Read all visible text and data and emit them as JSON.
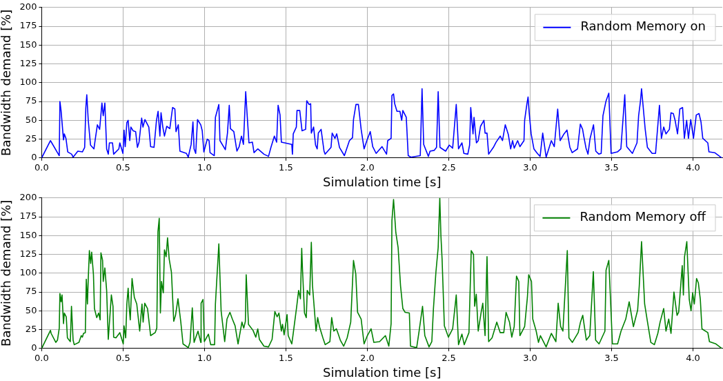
{
  "chart_data": [
    {
      "type": "line",
      "xlabel": "Simulation time [s]",
      "ylabel": "Bandwidth demand [%]",
      "xlim": [
        0,
        4.18
      ],
      "ylim": [
        0,
        200
      ],
      "xticks": [
        {
          "value": 0,
          "label": "0.0"
        },
        {
          "value": 0.5,
          "label": "0.5"
        },
        {
          "value": 1,
          "label": "1.0"
        },
        {
          "value": 1.5,
          "label": "1.5"
        },
        {
          "value": 2,
          "label": "2.0"
        },
        {
          "value": 2.5,
          "label": "2.5"
        },
        {
          "value": 3,
          "label": "3.0"
        },
        {
          "value": 3.5,
          "label": "3.5"
        },
        {
          "value": 4,
          "label": "4.0"
        }
      ],
      "yticks": [
        0,
        25,
        50,
        75,
        100,
        125,
        150,
        175,
        200
      ],
      "grid": true,
      "legend": "top right",
      "marker": "none",
      "line_style": "solid",
      "series": [
        {
          "name": "Random Memory on",
          "color": "#0000ff",
          "x": [
            0,
            0.054,
            0.108,
            0.112,
            0.119,
            0.134,
            0.139,
            0.149,
            0.16,
            0.184,
            0.193,
            0.222,
            0.25,
            0.264,
            0.271,
            0.277,
            0.286,
            0.3,
            0.321,
            0.328,
            0.342,
            0.356,
            0.37,
            0.378,
            0.388,
            0.399,
            0.409,
            0.416,
            0.435,
            0.442,
            0.474,
            0.48,
            0.499,
            0.506,
            0.513,
            0.523,
            0.531,
            0.541,
            0.548,
            0.562,
            0.577,
            0.588,
            0.598,
            0.614,
            0.622,
            0.634,
            0.658,
            0.669,
            0.69,
            0.705,
            0.715,
            0.726,
            0.733,
            0.744,
            0.754,
            0.768,
            0.787,
            0.804,
            0.818,
            0.825,
            0.839,
            0.849,
            0.889,
            0.9,
            0.918,
            0.929,
            0.936,
            0.946,
            0.957,
            0.977,
            0.986,
            0.996,
            1.017,
            1.028,
            1.034,
            1.06,
            1.067,
            1.088,
            1.095,
            1.128,
            1.141,
            1.152,
            1.159,
            1.18,
            1.199,
            1.213,
            1.227,
            1.239,
            1.253,
            1.261,
            1.273,
            1.294,
            1.304,
            1.327,
            1.365,
            1.393,
            1.408,
            1.429,
            1.443,
            1.452,
            1.464,
            1.472,
            1.493,
            1.536,
            1.54,
            1.545,
            1.564,
            1.568,
            1.585,
            1.599,
            1.621,
            1.628,
            1.642,
            1.652,
            1.656,
            1.67,
            1.682,
            1.692,
            1.699,
            1.716,
            1.734,
            1.741,
            1.777,
            1.784,
            1.801,
            1.812,
            1.829,
            1.859,
            1.89,
            1.909,
            1.915,
            1.93,
            1.945,
            1.962,
            1.98,
            1.997,
            2.018,
            2.033,
            2.054,
            2.09,
            2.118,
            2.125,
            2.146,
            2.151,
            2.161,
            2.168,
            2.182,
            2.2,
            2.211,
            2.218,
            2.239,
            2.251,
            2.268,
            2.325,
            2.336,
            2.346,
            2.375,
            2.385,
            2.41,
            2.425,
            2.435,
            2.446,
            2.481,
            2.503,
            2.524,
            2.546,
            2.56,
            2.581,
            2.593,
            2.617,
            2.628,
            2.635,
            2.649,
            2.655,
            2.67,
            2.681,
            2.695,
            2.716,
            2.723,
            2.735,
            2.745,
            2.774,
            2.791,
            2.816,
            2.83,
            2.847,
            2.866,
            2.88,
            2.892,
            2.902,
            2.923,
            2.937,
            2.962,
            2.966,
            2.98,
            2.987,
            2.994,
            3.006,
            3.023,
            3.044,
            3.061,
            3.077,
            3.098,
            3.13,
            3.148,
            3.169,
            3.184,
            3.208,
            3.226,
            3.244,
            3.258,
            3.291,
            3.308,
            3.322,
            3.329,
            3.343,
            3.355,
            3.368,
            3.389,
            3.403,
            3.422,
            3.436,
            3.447,
            3.465,
            3.483,
            3.497,
            3.536,
            3.557,
            3.581,
            3.593,
            3.628,
            3.656,
            3.666,
            3.677,
            3.684,
            3.706,
            3.72,
            3.749,
            3.77,
            3.794,
            3.806,
            3.82,
            3.834,
            3.855,
            3.865,
            3.879,
            3.89,
            3.905,
            3.919,
            3.936,
            3.947,
            3.961,
            3.972,
            3.986,
            4.003,
            4.02,
            4.037,
            4.049,
            4.06,
            4.091,
            4.098,
            4.133,
            4.177
          ],
          "values": [
            0,
            23,
            3,
            75,
            63,
            24,
            32,
            26,
            8,
            5,
            1,
            9,
            8,
            14,
            66,
            84,
            50,
            17,
            12,
            23,
            44,
            38,
            73,
            56,
            73,
            12,
            5,
            20,
            20,
            5,
            12,
            20,
            6,
            37,
            15,
            47,
            50,
            23,
            41,
            36,
            35,
            14,
            21,
            53,
            41,
            51,
            41,
            15,
            14,
            50,
            62,
            29,
            60,
            41,
            29,
            42,
            39,
            67,
            65,
            35,
            44,
            9,
            6,
            1,
            18,
            48,
            12,
            6,
            51,
            44,
            36,
            8,
            25,
            23,
            7,
            3,
            54,
            71,
            23,
            11,
            33,
            70,
            39,
            35,
            9,
            15,
            29,
            18,
            88,
            60,
            20,
            21,
            7,
            12,
            5,
            2,
            14,
            29,
            21,
            70,
            57,
            21,
            20,
            18,
            5,
            32,
            41,
            63,
            63,
            36,
            38,
            76,
            71,
            72,
            33,
            41,
            17,
            12,
            33,
            38,
            9,
            5,
            14,
            33,
            26,
            32,
            14,
            3,
            23,
            27,
            51,
            71,
            71,
            38,
            12,
            23,
            35,
            15,
            6,
            15,
            5,
            23,
            26,
            83,
            85,
            72,
            62,
            62,
            50,
            63,
            54,
            3,
            1,
            3,
            92,
            18,
            2,
            9,
            10,
            14,
            88,
            14,
            9,
            17,
            13,
            71,
            12,
            20,
            6,
            5,
            17,
            67,
            32,
            54,
            20,
            23,
            42,
            50,
            33,
            33,
            5,
            14,
            21,
            29,
            23,
            44,
            31,
            12,
            23,
            13,
            23,
            15,
            23,
            50,
            72,
            81,
            60,
            32,
            12,
            6,
            2,
            33,
            1,
            23,
            15,
            65,
            23,
            32,
            37,
            14,
            7,
            12,
            45,
            38,
            29,
            13,
            5,
            26,
            44,
            9,
            5,
            6,
            56,
            75,
            86,
            6,
            8,
            12,
            84,
            15,
            6,
            20,
            56,
            75,
            92,
            39,
            14,
            6,
            6,
            70,
            26,
            41,
            32,
            38,
            60,
            59,
            50,
            32,
            65,
            67,
            26,
            50,
            26,
            51,
            26,
            57,
            59,
            48,
            26,
            20,
            8,
            7,
            0
          ]
        }
      ]
    },
    {
      "type": "line",
      "xlabel": "Simulation time [s]",
      "ylabel": "Bandwidth demand [%]",
      "xlim": [
        0,
        4.18
      ],
      "ylim": [
        0,
        200
      ],
      "xticks": [
        {
          "value": 0,
          "label": "0.0"
        },
        {
          "value": 0.5,
          "label": "0.5"
        },
        {
          "value": 1,
          "label": "1.0"
        },
        {
          "value": 1.5,
          "label": "1.5"
        },
        {
          "value": 2,
          "label": "2.0"
        },
        {
          "value": 2.5,
          "label": "2.5"
        },
        {
          "value": 3,
          "label": "3.0"
        },
        {
          "value": 3.5,
          "label": "3.5"
        },
        {
          "value": 4,
          "label": "4.0"
        }
      ],
      "yticks": [
        0,
        25,
        50,
        75,
        100,
        125,
        150,
        175,
        200
      ],
      "grid": true,
      "legend": "top right",
      "marker": "none",
      "line_style": "solid",
      "series": [
        {
          "name": "Random Memory off",
          "color": "#008000",
          "x": [
            0,
            0.054,
            0.058,
            0.087,
            0.097,
            0.108,
            0.112,
            0.119,
            0.125,
            0.134,
            0.139,
            0.151,
            0.158,
            0.176,
            0.183,
            0.193,
            0.2,
            0.229,
            0.243,
            0.25,
            0.257,
            0.268,
            0.274,
            0.281,
            0.286,
            0.293,
            0.301,
            0.307,
            0.318,
            0.324,
            0.338,
            0.35,
            0.359,
            0.364,
            0.374,
            0.378,
            0.388,
            0.399,
            0.409,
            0.428,
            0.438,
            0.442,
            0.456,
            0.48,
            0.501,
            0.506,
            0.516,
            0.523,
            0.531,
            0.537,
            0.544,
            0.555,
            0.569,
            0.584,
            0.602,
            0.616,
            0.623,
            0.633,
            0.65,
            0.669,
            0.697,
            0.707,
            0.714,
            0.722,
            0.729,
            0.736,
            0.747,
            0.754,
            0.764,
            0.773,
            0.783,
            0.797,
            0.811,
            0.822,
            0.837,
            0.854,
            0.868,
            0.9,
            0.911,
            0.925,
            0.936,
            0.96,
            0.977,
            0.979,
            0.991,
            0.999,
            1.024,
            1.038,
            1.062,
            1.067,
            1.088,
            1.102,
            1.124,
            1.138,
            1.156,
            1.171,
            1.188,
            1.206,
            1.23,
            1.241,
            1.251,
            1.256,
            1.27,
            1.298,
            1.315,
            1.327,
            1.337,
            1.365,
            1.393,
            1.415,
            1.432,
            1.446,
            1.457,
            1.472,
            1.479,
            1.489,
            1.507,
            1.514,
            1.536,
            1.543,
            1.567,
            1.578,
            1.589,
            1.597,
            1.602,
            1.614,
            1.625,
            1.631,
            1.646,
            1.656,
            1.663,
            1.685,
            1.695,
            1.706,
            1.727,
            1.741,
            1.77,
            1.781,
            1.794,
            1.81,
            1.82,
            1.834,
            1.855,
            1.876,
            1.898,
            1.915,
            1.929,
            1.94,
            1.962,
            1.98,
            2.0,
            2.023,
            2.04,
            2.075,
            2.111,
            2.132,
            2.146,
            2.151,
            2.161,
            2.175,
            2.189,
            2.204,
            2.218,
            2.232,
            2.258,
            2.265,
            2.303,
            2.318,
            2.339,
            2.353,
            2.379,
            2.396,
            2.406,
            2.421,
            2.435,
            2.445,
            2.452,
            2.459,
            2.473,
            2.498,
            2.524,
            2.546,
            2.56,
            2.581,
            2.595,
            2.624,
            2.638,
            2.652,
            2.659,
            2.669,
            2.681,
            2.699,
            2.709,
            2.723,
            2.735,
            2.745,
            2.766,
            2.795,
            2.816,
            2.838,
            2.852,
            2.873,
            2.887,
            2.902,
            2.916,
            2.93,
            2.937,
            2.966,
            2.983,
            2.991,
            3.008,
            3.016,
            3.037,
            3.051,
            3.063,
            3.098,
            3.13,
            3.158,
            3.172,
            3.187,
            3.201,
            3.228,
            3.238,
            3.259,
            3.295,
            3.309,
            3.323,
            3.345,
            3.366,
            3.388,
            3.402,
            3.423,
            3.459,
            3.466,
            3.483,
            3.494,
            3.505,
            3.537,
            3.558,
            3.587,
            3.608,
            3.634,
            3.66,
            3.67,
            3.684,
            3.703,
            3.72,
            3.741,
            3.763,
            3.784,
            3.798,
            3.82,
            3.834,
            3.851,
            3.865,
            3.883,
            3.902,
            3.912,
            3.934,
            3.941,
            3.948,
            3.962,
            3.977,
            3.988,
            3.998,
            4.008,
            4.022,
            4.033,
            4.045,
            4.055,
            4.091,
            4.101,
            4.141,
            4.177
          ],
          "values": [
            0,
            24,
            20,
            8,
            11,
            27,
            73,
            62,
            71,
            33,
            47,
            42,
            14,
            9,
            56,
            11,
            5,
            8,
            17,
            15,
            20,
            21,
            92,
            59,
            92,
            130,
            113,
            128,
            98,
            53,
            41,
            47,
            38,
            127,
            117,
            89,
            107,
            77,
            12,
            71,
            56,
            15,
            14,
            21,
            6,
            30,
            14,
            59,
            80,
            56,
            38,
            93,
            68,
            59,
            23,
            59,
            35,
            60,
            53,
            17,
            21,
            27,
            155,
            173,
            47,
            89,
            74,
            131,
            122,
            147,
            119,
            101,
            36,
            44,
            66,
            36,
            6,
            1,
            8,
            54,
            8,
            23,
            8,
            60,
            65,
            9,
            19,
            5,
            5,
            59,
            139,
            50,
            9,
            39,
            48,
            39,
            30,
            6,
            35,
            27,
            36,
            98,
            32,
            24,
            15,
            26,
            12,
            3,
            2,
            12,
            49,
            42,
            47,
            23,
            32,
            18,
            45,
            17,
            6,
            17,
            57,
            77,
            66,
            133,
            104,
            47,
            41,
            77,
            71,
            141,
            84,
            23,
            41,
            29,
            14,
            5,
            9,
            41,
            23,
            26,
            20,
            11,
            3,
            14,
            35,
            117,
            99,
            48,
            39,
            6,
            17,
            26,
            8,
            9,
            17,
            3,
            33,
            170,
            198,
            154,
            134,
            83,
            53,
            48,
            47,
            3,
            1,
            23,
            56,
            17,
            2,
            9,
            53,
            101,
            134,
            200,
            149,
            119,
            30,
            15,
            26,
            71,
            5,
            19,
            5,
            21,
            130,
            125,
            56,
            72,
            23,
            48,
            60,
            17,
            122,
            9,
            14,
            35,
            21,
            21,
            48,
            35,
            15,
            29,
            96,
            89,
            17,
            29,
            68,
            98,
            89,
            39,
            23,
            8,
            17,
            2,
            20,
            9,
            60,
            29,
            23,
            130,
            14,
            8,
            21,
            35,
            44,
            11,
            17,
            102,
            11,
            6,
            23,
            104,
            117,
            62,
            6,
            6,
            23,
            39,
            62,
            29,
            51,
            83,
            142,
            59,
            36,
            8,
            5,
            20,
            35,
            53,
            23,
            39,
            20,
            75,
            44,
            48,
            110,
            71,
            122,
            142,
            65,
            50,
            74,
            59,
            93,
            87,
            65,
            26,
            21,
            9,
            6,
            0
          ]
        }
      ]
    }
  ]
}
